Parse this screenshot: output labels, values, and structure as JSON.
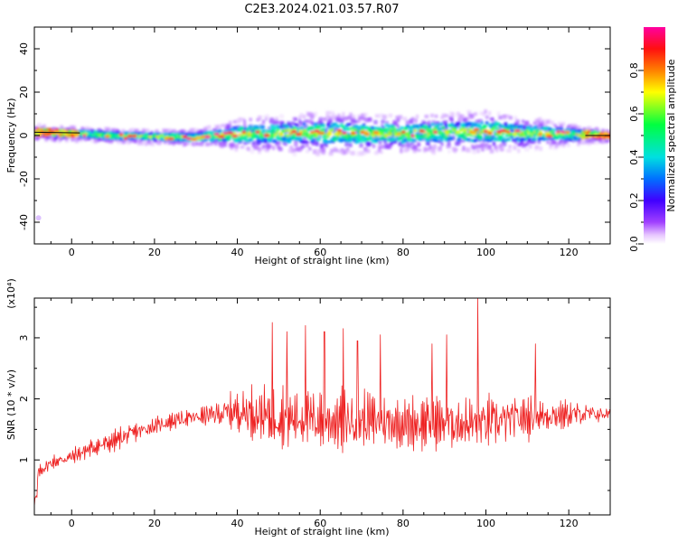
{
  "title": "C2E3.2024.021.03.57.R07",
  "chart_data": [
    {
      "type": "heatmap",
      "xlabel": "Height of straight line (km)",
      "ylabel": "Frequency (Hz)",
      "xlim": [
        -9,
        130
      ],
      "ylim": [
        -50,
        50
      ],
      "x_ticks": [
        "0",
        "20",
        "40",
        "60",
        "80",
        "100",
        "120"
      ],
      "y_ticks": [
        "-40",
        "-20",
        "0",
        "20",
        "40"
      ],
      "x_tick_values": [
        0,
        20,
        40,
        60,
        80,
        100,
        120
      ],
      "y_tick_values": [
        -40,
        -20,
        0,
        20,
        40
      ],
      "colormap": "rainbow (white-violet-blue-cyan-green-yellow-orange-red-magenta)",
      "band_center_hz": [
        [
          -8,
          1.5
        ],
        [
          0,
          1.0
        ],
        [
          10,
          0.0
        ],
        [
          20,
          -0.5
        ],
        [
          30,
          -0.8
        ],
        [
          40,
          0.5
        ],
        [
          50,
          1.0
        ],
        [
          60,
          1.2
        ],
        [
          70,
          1.0
        ],
        [
          80,
          0.8
        ],
        [
          90,
          1.5
        ],
        [
          100,
          1.8
        ],
        [
          110,
          1.0
        ],
        [
          120,
          0.5
        ],
        [
          130,
          0.0
        ]
      ],
      "band_halfwidth_hz": [
        [
          -8,
          3
        ],
        [
          0,
          2.5
        ],
        [
          10,
          2.5
        ],
        [
          20,
          2.5
        ],
        [
          30,
          3
        ],
        [
          35,
          4
        ],
        [
          40,
          6
        ],
        [
          50,
          7
        ],
        [
          60,
          8
        ],
        [
          70,
          7.5
        ],
        [
          80,
          7
        ],
        [
          90,
          7
        ],
        [
          100,
          8
        ],
        [
          110,
          6
        ],
        [
          120,
          4
        ],
        [
          130,
          2
        ]
      ],
      "colorbar": {
        "label": "Normalized spectral amplitude",
        "range": [
          0,
          1
        ],
        "ticks": [
          "0.0",
          "0.2",
          "0.4",
          "0.6",
          "0.8"
        ],
        "tick_values": [
          0,
          0.2,
          0.4,
          0.6,
          0.8
        ]
      }
    },
    {
      "type": "line",
      "xlabel": "Height of straight line (km)",
      "ylabel": "SNR (10 * v/v)",
      "scale_label": "(x10⁴)",
      "xlim": [
        -9,
        130
      ],
      "ylim": [
        0.1,
        3.65
      ],
      "x_ticks": [
        "0",
        "20",
        "40",
        "60",
        "80",
        "100",
        "120"
      ],
      "y_ticks": [
        "1",
        "2",
        "3"
      ],
      "x_tick_values": [
        0,
        20,
        40,
        60,
        80,
        100,
        120
      ],
      "y_tick_values": [
        1,
        2,
        3
      ],
      "series": [
        {
          "color": "#ee2222",
          "trend": [
            [
              -9,
              0.4
            ],
            [
              -8,
              0.8
            ],
            [
              -5,
              0.95
            ],
            [
              0,
              1.05
            ],
            [
              5,
              1.2
            ],
            [
              10,
              1.3
            ],
            [
              15,
              1.45
            ],
            [
              20,
              1.55
            ],
            [
              25,
              1.65
            ],
            [
              30,
              1.7
            ],
            [
              35,
              1.75
            ],
            [
              40,
              1.8
            ],
            [
              50,
              1.7
            ],
            [
              60,
              1.65
            ],
            [
              70,
              1.65
            ],
            [
              80,
              1.6
            ],
            [
              90,
              1.6
            ],
            [
              100,
              1.6
            ],
            [
              110,
              1.7
            ],
            [
              120,
              1.75
            ],
            [
              130,
              1.75
            ]
          ],
          "amplitude": [
            [
              -9,
              0.15
            ],
            [
              0,
              0.2
            ],
            [
              10,
              0.25
            ],
            [
              20,
              0.2
            ],
            [
              30,
              0.2
            ],
            [
              35,
              0.35
            ],
            [
              40,
              0.5
            ],
            [
              45,
              0.65
            ],
            [
              50,
              0.7
            ],
            [
              60,
              0.75
            ],
            [
              70,
              0.7
            ],
            [
              80,
              0.65
            ],
            [
              90,
              0.6
            ],
            [
              100,
              0.65
            ],
            [
              110,
              0.5
            ],
            [
              120,
              0.35
            ],
            [
              125,
              0.25
            ],
            [
              130,
              0.15
            ]
          ],
          "peaks": [
            [
              48.5,
              3.25
            ],
            [
              52,
              3.1
            ],
            [
              56.5,
              3.2
            ],
            [
              61,
              3.1
            ],
            [
              65.5,
              3.15
            ],
            [
              69,
              2.95
            ],
            [
              74.5,
              3.05
            ],
            [
              87,
              2.9
            ],
            [
              90.5,
              3.05
            ],
            [
              98,
              3.65
            ],
            [
              112,
              2.9
            ]
          ]
        }
      ]
    }
  ]
}
